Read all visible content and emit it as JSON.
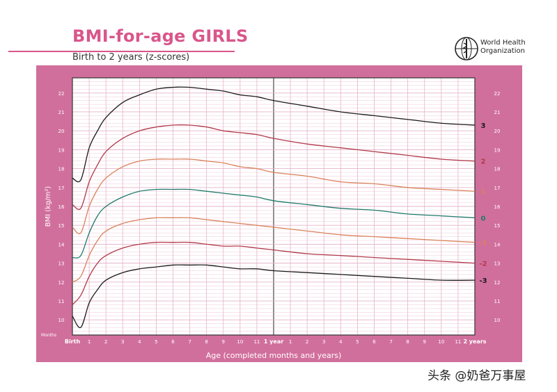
{
  "header": {
    "title": "BMI-for-age GIRLS",
    "subtitle": "Birth to 2 years (z-scores)",
    "org_line1": "World Health",
    "org_line2": "Organization"
  },
  "watermark": "头条 @奶爸万事屋",
  "colors": {
    "panel": "#d16f9c",
    "title": "#d9568b",
    "grid": "#e6b3c9"
  },
  "chart_data": {
    "type": "line",
    "xlabel": "Age (completed months and years)",
    "ylabel": "BMI (kg/m²)",
    "x_unit_label": "Months",
    "xlim": [
      0,
      24
    ],
    "ylim": [
      9.2,
      22.8
    ],
    "x_tick_labels": [
      {
        "x": 0,
        "label": "Birth"
      },
      {
        "x": 1,
        "label": "1"
      },
      {
        "x": 2,
        "label": "2"
      },
      {
        "x": 3,
        "label": "3"
      },
      {
        "x": 4,
        "label": "4"
      },
      {
        "x": 5,
        "label": "5"
      },
      {
        "x": 6,
        "label": "6"
      },
      {
        "x": 7,
        "label": "7"
      },
      {
        "x": 8,
        "label": "8"
      },
      {
        "x": 9,
        "label": "9"
      },
      {
        "x": 10,
        "label": "10"
      },
      {
        "x": 11,
        "label": "11"
      },
      {
        "x": 12,
        "label": "1 year"
      },
      {
        "x": 13,
        "label": "1"
      },
      {
        "x": 14,
        "label": "2"
      },
      {
        "x": 15,
        "label": "3"
      },
      {
        "x": 16,
        "label": "4"
      },
      {
        "x": 17,
        "label": "5"
      },
      {
        "x": 18,
        "label": "6"
      },
      {
        "x": 19,
        "label": "7"
      },
      {
        "x": 20,
        "label": "8"
      },
      {
        "x": 21,
        "label": "9"
      },
      {
        "x": 22,
        "label": "10"
      },
      {
        "x": 23,
        "label": "11"
      },
      {
        "x": 24,
        "label": "2 years"
      }
    ],
    "y_ticks": [
      10,
      11,
      12,
      13,
      14,
      15,
      16,
      17,
      18,
      19,
      20,
      21,
      22
    ],
    "x": [
      0,
      0.5,
      1,
      1.5,
      2,
      3,
      4,
      5,
      6,
      7,
      8,
      9,
      10,
      11,
      12,
      14,
      16,
      18,
      20,
      22,
      24
    ],
    "series": [
      {
        "name": "3",
        "color": "#1a1a1a",
        "values": [
          17.5,
          17.4,
          19.1,
          20.0,
          20.7,
          21.5,
          21.9,
          22.2,
          22.3,
          22.3,
          22.2,
          22.1,
          21.9,
          21.8,
          21.6,
          21.3,
          21.0,
          20.8,
          20.6,
          20.4,
          20.3
        ]
      },
      {
        "name": "2",
        "color": "#b03a4a",
        "values": [
          16.1,
          15.9,
          17.3,
          18.2,
          18.9,
          19.6,
          20.0,
          20.2,
          20.3,
          20.3,
          20.2,
          20.0,
          19.9,
          19.8,
          19.6,
          19.3,
          19.1,
          18.9,
          18.7,
          18.5,
          18.4
        ]
      },
      {
        "name": "1",
        "color": "#d9825a",
        "values": [
          14.9,
          14.6,
          16.0,
          16.9,
          17.5,
          18.1,
          18.4,
          18.5,
          18.5,
          18.5,
          18.4,
          18.3,
          18.1,
          18.0,
          17.8,
          17.6,
          17.3,
          17.2,
          17.0,
          16.9,
          16.8
        ]
      },
      {
        "name": "0",
        "color": "#1f7a6a",
        "values": [
          13.3,
          13.4,
          14.6,
          15.5,
          16.0,
          16.5,
          16.8,
          16.9,
          16.9,
          16.9,
          16.8,
          16.7,
          16.6,
          16.5,
          16.3,
          16.1,
          15.9,
          15.8,
          15.6,
          15.5,
          15.4
        ]
      },
      {
        "name": "-1",
        "color": "#d9825a",
        "values": [
          12.0,
          12.3,
          13.4,
          14.2,
          14.7,
          15.1,
          15.3,
          15.4,
          15.4,
          15.4,
          15.3,
          15.2,
          15.1,
          15.0,
          14.9,
          14.7,
          14.5,
          14.4,
          14.3,
          14.2,
          14.1
        ]
      },
      {
        "name": "-2",
        "color": "#b03a4a",
        "values": [
          10.8,
          11.3,
          12.3,
          13.0,
          13.4,
          13.8,
          14.0,
          14.1,
          14.1,
          14.1,
          14.0,
          13.9,
          13.9,
          13.8,
          13.7,
          13.5,
          13.4,
          13.3,
          13.2,
          13.1,
          13.0
        ]
      },
      {
        "name": "-3",
        "color": "#1a1a1a",
        "values": [
          10.2,
          9.6,
          10.9,
          11.6,
          12.1,
          12.5,
          12.7,
          12.8,
          12.9,
          12.9,
          12.9,
          12.8,
          12.7,
          12.7,
          12.6,
          12.5,
          12.4,
          12.3,
          12.2,
          12.1,
          12.1
        ]
      }
    ]
  }
}
